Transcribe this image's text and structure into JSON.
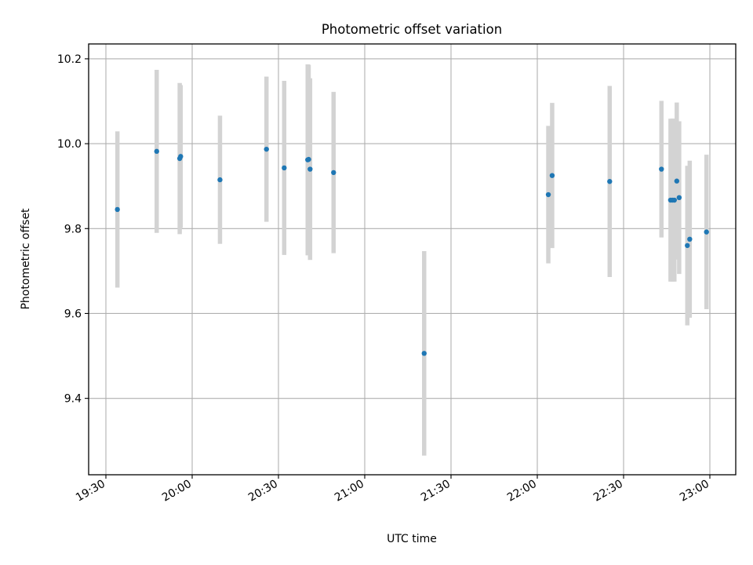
{
  "chart_data": {
    "type": "scatter",
    "title": "Photometric offset variation",
    "xlabel": "UTC time",
    "ylabel": "Photometric offset",
    "x_unit": "UTC time (HH:MM)",
    "xlim": [
      "19:24",
      "23:09"
    ],
    "ylim": [
      9.22,
      10.235
    ],
    "x_ticks": [
      "19:30",
      "20:00",
      "20:30",
      "21:00",
      "21:30",
      "22:00",
      "22:30",
      "23:00"
    ],
    "y_ticks": [
      9.4,
      9.6,
      9.8,
      10.0,
      10.2
    ],
    "y_tick_labels": [
      "9.4",
      "9.6",
      "9.8",
      "10.0",
      "10.2"
    ],
    "grid": true,
    "series": [
      {
        "marker_color": "#1f77b4",
        "errorbar_color": "#d3d3d3",
        "points": [
          {
            "x": "19:34:00",
            "y": 9.845,
            "err": 0.184
          },
          {
            "x": "19:47:40",
            "y": 9.982,
            "err": 0.192
          },
          {
            "x": "19:55:40",
            "y": 9.965,
            "err": 0.178
          },
          {
            "x": "19:56:00",
            "y": 9.97,
            "err": 0.168
          },
          {
            "x": "20:09:40",
            "y": 9.915,
            "err": 0.151
          },
          {
            "x": "20:25:50",
            "y": 9.987,
            "err": 0.171
          },
          {
            "x": "20:32:00",
            "y": 9.943,
            "err": 0.205
          },
          {
            "x": "20:40:10",
            "y": 9.962,
            "err": 0.225
          },
          {
            "x": "20:40:30",
            "y": 9.963,
            "err": 0.223
          },
          {
            "x": "20:41:00",
            "y": 9.94,
            "err": 0.214
          },
          {
            "x": "20:49:10",
            "y": 9.932,
            "err": 0.19
          },
          {
            "x": "21:20:40",
            "y": 9.506,
            "err": 0.241
          },
          {
            "x": "22:03:50",
            "y": 9.88,
            "err": 0.162
          },
          {
            "x": "22:05:10",
            "y": 9.925,
            "err": 0.171
          },
          {
            "x": "22:25:10",
            "y": 9.911,
            "err": 0.225
          },
          {
            "x": "22:43:10",
            "y": 9.94,
            "err": 0.161
          },
          {
            "x": "22:46:20",
            "y": 9.867,
            "err": 0.192
          },
          {
            "x": "22:47:00",
            "y": 9.867,
            "err": 0.192
          },
          {
            "x": "22:47:40",
            "y": 9.867,
            "err": 0.192
          },
          {
            "x": "22:48:30",
            "y": 9.912,
            "err": 0.185
          },
          {
            "x": "22:49:20",
            "y": 9.873,
            "err": 0.18
          },
          {
            "x": "22:52:10",
            "y": 9.76,
            "err": 0.188
          },
          {
            "x": "22:53:00",
            "y": 9.775,
            "err": 0.185
          },
          {
            "x": "22:58:50",
            "y": 9.792,
            "err": 0.182
          }
        ]
      }
    ]
  }
}
